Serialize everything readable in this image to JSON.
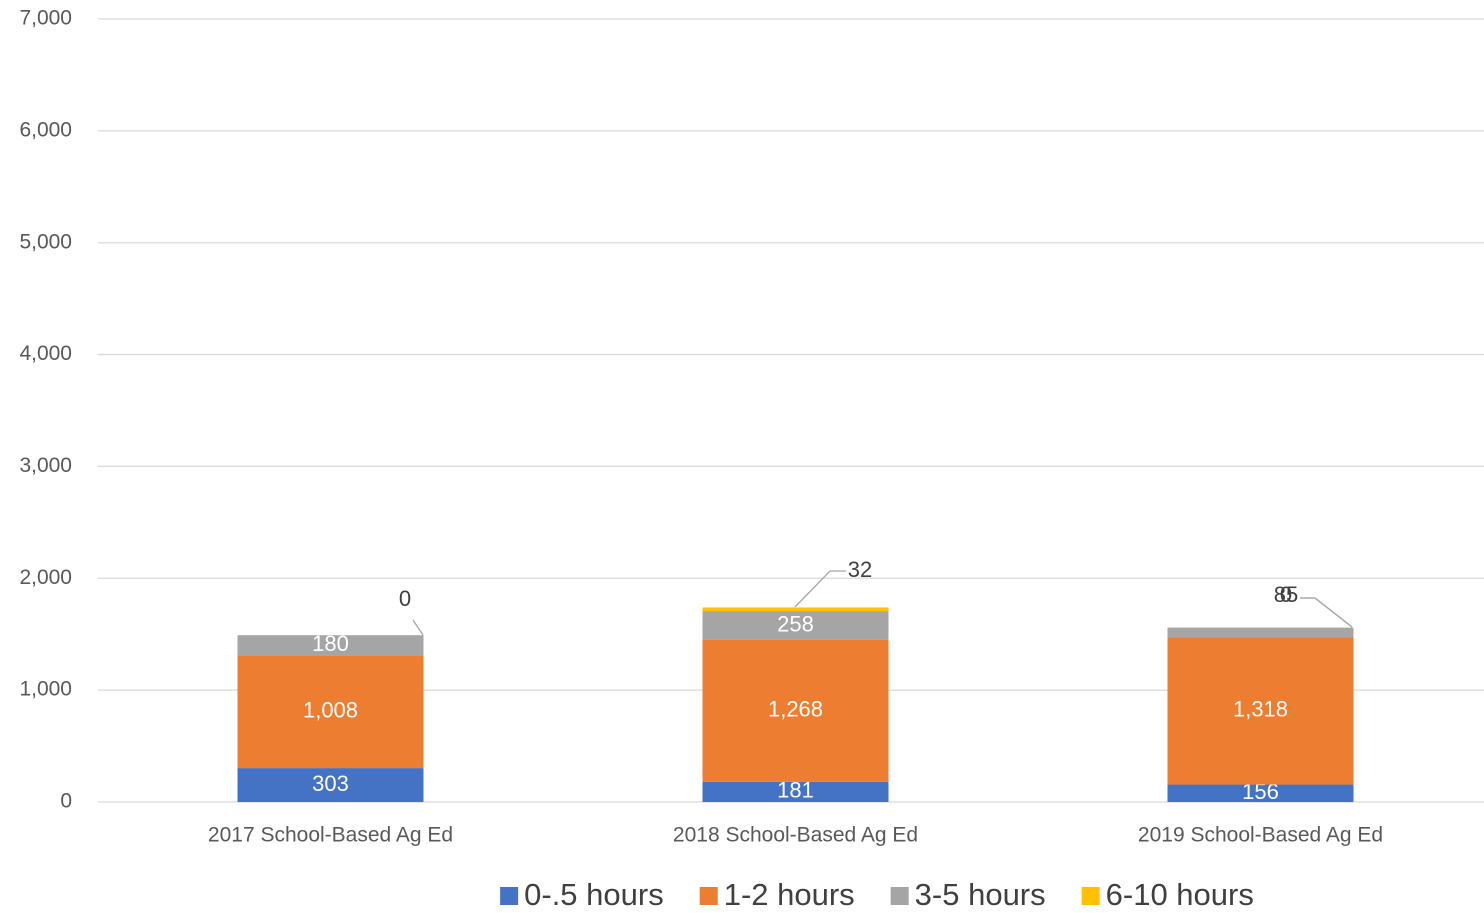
{
  "chart_data": {
    "type": "stacked_bar",
    "categories": [
      "2017 School-Based Ag Ed",
      "2018 School-Based Ag Ed",
      "2019 School-Based Ag Ed"
    ],
    "series": [
      {
        "name": "0-.5 hours",
        "color": "#4472c4",
        "values": [
          303,
          181,
          156
        ]
      },
      {
        "name": "1-2 hours",
        "color": "#ed7d31",
        "values": [
          1008,
          1268,
          1318
        ],
        "value_labels": [
          "1,008",
          "1,268",
          "1,318"
        ]
      },
      {
        "name": "3-5 hours",
        "color": "#a5a5a5",
        "values": [
          180,
          258,
          85
        ]
      },
      {
        "name": "6-10 hours",
        "color": "#ffc000",
        "values": [
          0,
          32,
          0
        ]
      }
    ],
    "ylim": [
      0,
      7000
    ],
    "yticks": [
      0,
      {
        "value": 1000,
        "label": "1,000"
      },
      {
        "value": 2000,
        "label": "2,000"
      },
      {
        "value": 3000,
        "label": "3,000"
      },
      {
        "value": 4000,
        "label": "4,000"
      },
      {
        "value": 5000,
        "label": "5,000"
      },
      {
        "value": 6000,
        "label": "6,000"
      },
      {
        "value": 7000,
        "label": "7,000"
      }
    ],
    "grid": true,
    "legend": "bottom"
  }
}
